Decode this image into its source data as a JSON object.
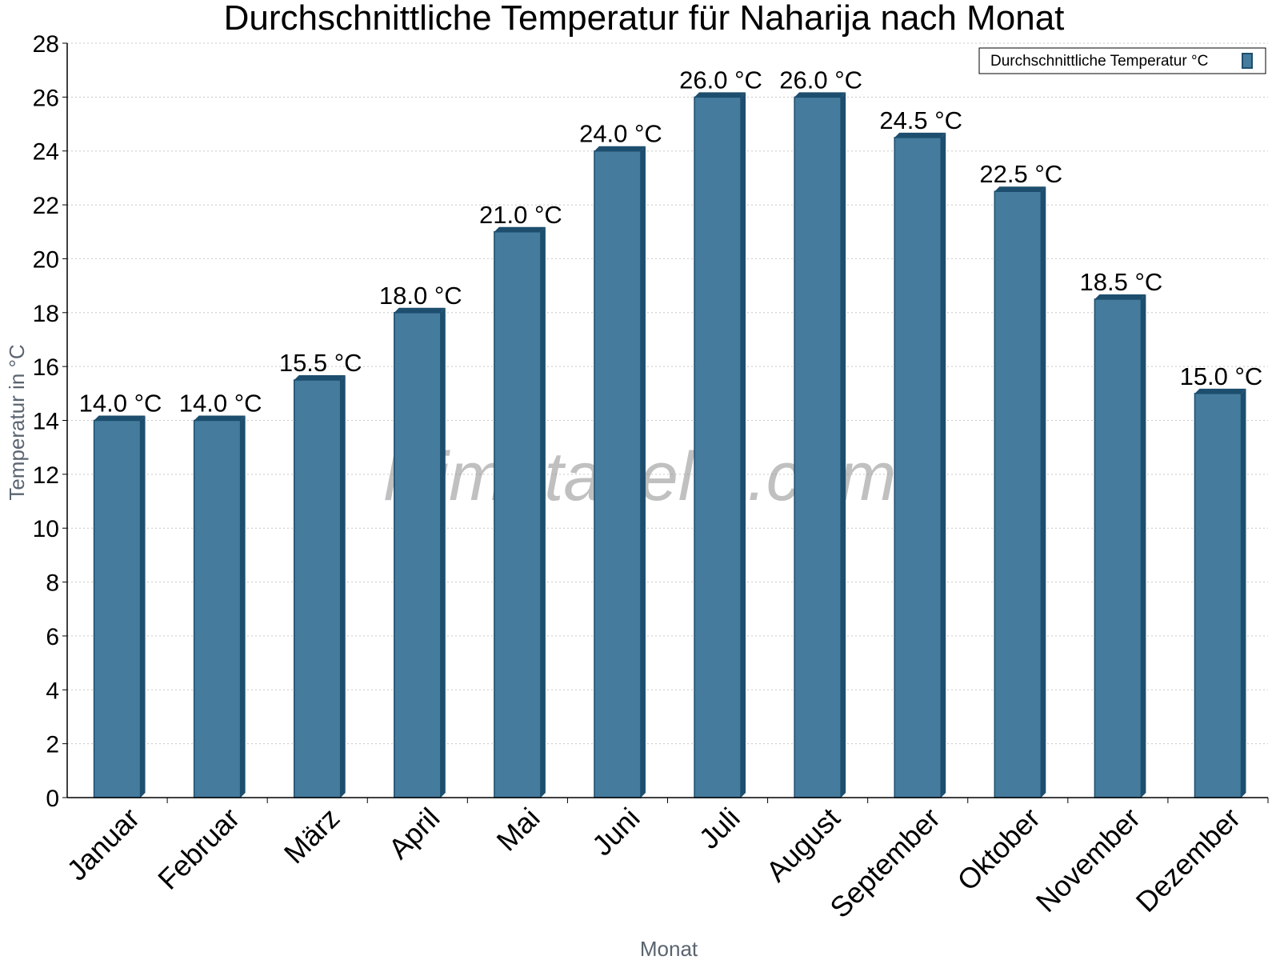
{
  "chart_data": {
    "type": "bar",
    "title": "Durchschnittliche Temperatur für Naharija nach Monat",
    "xlabel": "Monat",
    "ylabel": "Temperatur in °C",
    "ylim": [
      0,
      28
    ],
    "yticks": [
      "0",
      "2",
      "4",
      "6",
      "8",
      "10",
      "12",
      "14",
      "16",
      "18",
      "20",
      "22",
      "24",
      "26",
      "28"
    ],
    "categories": [
      "Januar",
      "Februar",
      "März",
      "April",
      "Mai",
      "Juni",
      "Juli",
      "August",
      "September",
      "Oktober",
      "November",
      "Dezember"
    ],
    "series": [
      {
        "name": "Durchschnittliche Temperatur °C",
        "values": [
          14.0,
          14.0,
          15.5,
          18.0,
          21.0,
          24.0,
          26.0,
          26.0,
          24.5,
          22.5,
          18.5,
          15.0
        ],
        "labels": [
          "14.0 °C",
          "14.0 °C",
          "15.5 °C",
          "18.0 °C",
          "21.0 °C",
          "24.0 °C",
          "26.0 °C",
          "26.0 °C",
          "24.5 °C",
          "22.5 °C",
          "18.5 °C",
          "15.0 °C"
        ],
        "color": "#457b9d",
        "shade_color": "#1d4e6e"
      }
    ],
    "grid": true,
    "legend_position": "top-right",
    "watermark": "klimatabelle.com"
  }
}
